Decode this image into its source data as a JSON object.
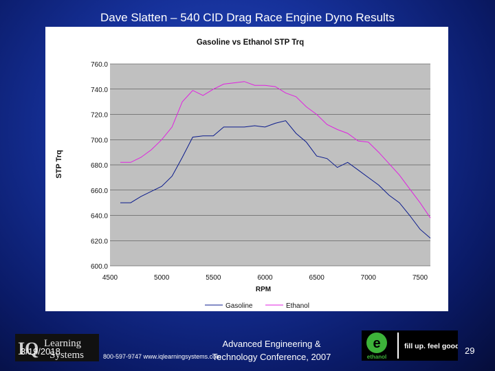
{
  "slide": {
    "title": "Dave Slatten – 540 CID Drag Race Engine Dyno Results",
    "date": "3/19/2018",
    "page_number": "29",
    "phone_url": "800-597-9747  www.iqlearningsystems.com",
    "conference_line1": "Advanced Engineering &",
    "conference_line2": "Technology Conference, 2007"
  },
  "logos": {
    "left_line1": "Learning",
    "left_line2": "Systems",
    "left_mark": "IQ",
    "right_brand": "ethanol",
    "right_slogan": "fill up. feel good"
  },
  "chart_data": {
    "type": "line",
    "title": "Gasoline vs Ethanol STP Trq",
    "xlabel": "RPM",
    "ylabel": "STP Trq",
    "xlim": [
      4500,
      7600
    ],
    "ylim": [
      600,
      760
    ],
    "xticks": [
      4500,
      5000,
      5500,
      6000,
      6500,
      7000,
      7500
    ],
    "xtick_labels": [
      "4500",
      "5000",
      "5500",
      "6000",
      "6500",
      "7000",
      "7500"
    ],
    "yticks": [
      600,
      620,
      640,
      660,
      680,
      700,
      720,
      740,
      760
    ],
    "ytick_labels": [
      "600.0",
      "620.0",
      "640.0",
      "660.0",
      "680.0",
      "700.0",
      "720.0",
      "740.0",
      "760.0"
    ],
    "grid": true,
    "legend": "bottom",
    "colors": {
      "plot_bg": "#c0c0c0",
      "panel_bg": "#ffffff",
      "gasoline": "#0a1a8c",
      "ethanol": "#e020e0"
    },
    "series": [
      {
        "name": "Gasoline",
        "x": [
          4600,
          4700,
          4800,
          4900,
          5000,
          5100,
          5200,
          5300,
          5400,
          5500,
          5600,
          5700,
          5800,
          5900,
          6000,
          6100,
          6200,
          6300,
          6400,
          6500,
          6600,
          6700,
          6800,
          6900,
          7000,
          7100,
          7200,
          7300,
          7400,
          7500,
          7600
        ],
        "values": [
          650,
          650,
          655,
          659,
          663,
          671,
          686,
          702,
          703,
          703,
          710,
          710,
          710,
          711,
          710,
          713,
          715,
          705,
          698,
          687,
          685,
          678,
          682,
          676,
          670,
          664,
          656,
          650,
          640,
          629,
          622
        ]
      },
      {
        "name": "Ethanol",
        "x": [
          4600,
          4700,
          4800,
          4900,
          5000,
          5100,
          5200,
          5300,
          5400,
          5500,
          5600,
          5700,
          5800,
          5900,
          6000,
          6100,
          6200,
          6300,
          6400,
          6500,
          6600,
          6700,
          6800,
          6900,
          7000,
          7100,
          7200,
          7300,
          7400,
          7500,
          7600
        ],
        "values": [
          682,
          682,
          686,
          692,
          700,
          710,
          730,
          739,
          735,
          740,
          744,
          745,
          746,
          743,
          743,
          742,
          737,
          734,
          726,
          720,
          712,
          708,
          705,
          699,
          698,
          690,
          681,
          672,
          661,
          650,
          638
        ]
      }
    ]
  }
}
